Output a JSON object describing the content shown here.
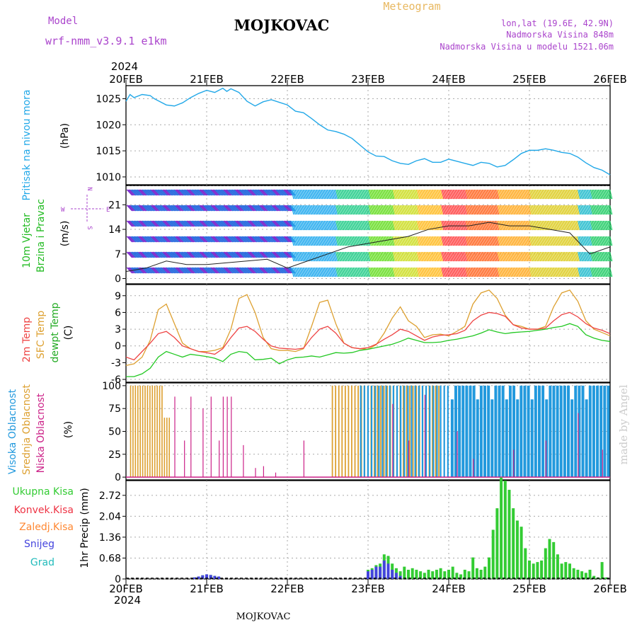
{
  "header": {
    "model_label": "Model",
    "model_name": "wrf-nmm_v3.9.1 e1km",
    "station_title": "MOJKOVAC",
    "product_label": "Meteogram",
    "coords": "lon,lat (19.6E, 42.9N)",
    "elevation": "Nadmorska Visina 848m",
    "model_elevation": "Nadmorska Visina u modelu 1521.06m",
    "year_top": "2024",
    "year_bottom": "2024",
    "footer_station": "MOJKOVAC",
    "credit": "made by Angel"
  },
  "colors": {
    "pressure": "#22a8e8",
    "temp2m": "#ee4444",
    "sfc": "#dda030",
    "dewpt": "#22c822",
    "cloud_high": "#2299dd",
    "cloud_mid": "#dda030",
    "cloud_low": "#cc2288",
    "precip_total": "#33cc33",
    "precip_conv": "#ee3344",
    "precip_frz": "#ff8833",
    "snow": "#4444dd",
    "grad": "#22bbbb",
    "title": "#000000",
    "model_text": "#aa44cc",
    "meteogram_text": "#e8b860"
  },
  "chart_data": [
    {
      "type": "line",
      "panel": "pressure",
      "ylabel_main": "Pritisak na nivou mora",
      "ylabel_unit": "(hPa)",
      "x_ticks": [
        "20FEB",
        "21FEB",
        "22FEB",
        "23FEB",
        "24FEB",
        "25FEB",
        "26FEB"
      ],
      "yticks": [
        1010,
        1015,
        1020,
        1025
      ],
      "ylim": [
        1008.5,
        1027.5
      ],
      "grid": true,
      "series": [
        {
          "x": [
            0,
            0.05,
            0.1,
            0.2,
            0.3,
            0.35,
            0.4,
            0.5,
            0.6,
            0.7,
            0.8,
            0.9,
            1.0,
            1.1,
            1.2,
            1.25,
            1.3,
            1.4,
            1.5,
            1.6,
            1.7,
            1.8,
            1.9,
            2.0,
            2.1,
            2.2,
            2.3,
            2.4,
            2.5,
            2.6,
            2.7,
            2.8,
            2.9,
            3.0,
            3.1,
            3.2,
            3.3,
            3.4,
            3.5,
            3.6,
            3.7,
            3.8,
            3.9,
            4.0,
            4.1,
            4.2,
            4.3,
            4.4,
            4.5,
            4.6,
            4.7,
            4.8,
            4.9,
            5.0,
            5.1,
            5.2,
            5.3,
            5.4,
            5.5,
            5.6,
            5.7,
            5.8,
            5.9,
            6.0
          ],
          "values": [
            1024.5,
            1025.8,
            1025.2,
            1025.8,
            1025.6,
            1025.0,
            1024.6,
            1023.8,
            1023.6,
            1024.2,
            1025.2,
            1026.0,
            1026.6,
            1026.2,
            1027.0,
            1026.4,
            1026.9,
            1026.2,
            1024.5,
            1023.6,
            1024.4,
            1024.8,
            1024.3,
            1023.8,
            1022.6,
            1022.3,
            1021.2,
            1020.0,
            1019.0,
            1018.7,
            1018.2,
            1017.4,
            1016.1,
            1014.8,
            1014.0,
            1013.9,
            1013.1,
            1012.6,
            1012.4,
            1013.1,
            1013.5,
            1012.8,
            1012.8,
            1013.4,
            1013.0,
            1012.6,
            1012.2,
            1012.8,
            1012.6,
            1011.9,
            1012.2,
            1013.3,
            1014.5,
            1015.1,
            1015.1,
            1015.4,
            1015.1,
            1014.7,
            1014.5,
            1013.8,
            1012.7,
            1011.8,
            1011.3,
            1010.4
          ]
        }
      ]
    },
    {
      "type": "line",
      "panel": "wind",
      "ylabel_main": "10m Vjetar",
      "ylabel_sub": "Brzina i Pravac",
      "ylabel_unit": "(m/s)",
      "compass": {
        "n": "N",
        "s": "S",
        "e": "E",
        "w": "W"
      },
      "yticks": [
        0,
        7,
        14,
        21
      ],
      "ylim": [
        -1.5,
        26.5
      ],
      "grid": true,
      "series": [
        {
          "name": "speed",
          "x": [
            0,
            0.25,
            0.5,
            0.75,
            1.0,
            1.25,
            1.5,
            1.75,
            2.0,
            2.25,
            2.5,
            2.75,
            3.0,
            3.25,
            3.5,
            3.75,
            4.0,
            4.25,
            4.5,
            4.75,
            5.0,
            5.25,
            5.5,
            5.75,
            6.0
          ],
          "values": [
            2,
            3,
            5,
            4,
            4,
            4.5,
            5,
            5.5,
            3,
            5,
            7,
            9,
            10,
            11,
            12,
            14,
            15,
            15,
            16,
            15,
            15,
            14,
            13,
            7,
            9
          ]
        }
      ]
    },
    {
      "type": "line",
      "panel": "temperature",
      "ylabel_temp": "2m Temp",
      "ylabel_sfc": "SFC Temp",
      "ylabel_dew": "dewpt Temp",
      "ylabel_unit": "(C)",
      "yticks": [
        -6,
        -3,
        0,
        3,
        6,
        9
      ],
      "ylim": [
        -6.5,
        11
      ],
      "grid": true,
      "series": [
        {
          "name": "2m Temp",
          "x": [
            0,
            0.1,
            0.2,
            0.3,
            0.4,
            0.5,
            0.6,
            0.7,
            0.8,
            0.9,
            1.0,
            1.1,
            1.2,
            1.3,
            1.4,
            1.5,
            1.6,
            1.7,
            1.8,
            1.9,
            2.0,
            2.1,
            2.2,
            2.3,
            2.4,
            2.5,
            2.6,
            2.7,
            2.8,
            2.9,
            3.0,
            3.1,
            3.2,
            3.3,
            3.4,
            3.5,
            3.6,
            3.7,
            3.8,
            3.9,
            4.0,
            4.1,
            4.2,
            4.3,
            4.4,
            4.5,
            4.6,
            4.7,
            4.8,
            4.9,
            5.0,
            5.1,
            5.2,
            5.3,
            5.4,
            5.5,
            5.6,
            5.7,
            5.8,
            5.9,
            6.0
          ],
          "values": [
            -2,
            -2.5,
            -1,
            0.5,
            2.2,
            2.6,
            1.5,
            0,
            -0.5,
            -1,
            -1.2,
            -1.5,
            -0.5,
            1.5,
            3.2,
            3.5,
            2.6,
            1.2,
            0,
            -0.4,
            -0.5,
            -0.6,
            -0.4,
            1.5,
            3,
            3.5,
            2.3,
            0.5,
            -0.3,
            -0.5,
            -0.3,
            0.3,
            1.2,
            2,
            3,
            2.6,
            1.8,
            1.0,
            1.6,
            1.9,
            2.0,
            2.2,
            2.8,
            4.5,
            5.5,
            6,
            5.8,
            5.3,
            3.8,
            3.2,
            3,
            3,
            3.2,
            4.5,
            5.6,
            6,
            5.2,
            4,
            3.2,
            2.8,
            2.2
          ]
        },
        {
          "name": "SFC Temp",
          "x": [
            0,
            0.1,
            0.2,
            0.3,
            0.4,
            0.5,
            0.6,
            0.7,
            0.8,
            0.9,
            1.0,
            1.1,
            1.2,
            1.3,
            1.4,
            1.5,
            1.6,
            1.7,
            1.8,
            1.9,
            2.0,
            2.1,
            2.2,
            2.3,
            2.4,
            2.5,
            2.6,
            2.7,
            2.8,
            2.9,
            3.0,
            3.1,
            3.2,
            3.3,
            3.4,
            3.5,
            3.6,
            3.7,
            3.8,
            3.9,
            4.0,
            4.1,
            4.2,
            4.3,
            4.4,
            4.5,
            4.6,
            4.7,
            4.8,
            4.9,
            5.0,
            5.1,
            5.2,
            5.3,
            5.4,
            5.5,
            5.6,
            5.7,
            5.8,
            5.9,
            6.0
          ],
          "values": [
            -3.5,
            -3.2,
            -2,
            1,
            6.5,
            7.5,
            4,
            0.5,
            -0.5,
            -1,
            -1,
            -0.8,
            -0.3,
            3,
            8.5,
            9.2,
            6,
            1.5,
            -0.5,
            -0.8,
            -0.8,
            -1,
            -0.5,
            3.5,
            7.8,
            8.2,
            4,
            0.5,
            -0.3,
            -0.5,
            -0.6,
            0.2,
            2.3,
            5,
            7,
            4.5,
            3.5,
            1.5,
            2.0,
            2.1,
            1.8,
            2.6,
            3.5,
            7.5,
            9.5,
            10,
            8.5,
            5.5,
            3.8,
            3.5,
            3.0,
            3.0,
            3.5,
            7,
            9.5,
            10,
            8,
            4.5,
            3,
            2.4,
            1.8
          ]
        },
        {
          "name": "dewpt Temp",
          "x": [
            0,
            0.1,
            0.2,
            0.3,
            0.4,
            0.5,
            0.6,
            0.7,
            0.8,
            0.9,
            1.0,
            1.1,
            1.2,
            1.3,
            1.4,
            1.5,
            1.6,
            1.7,
            1.8,
            1.9,
            2.0,
            2.1,
            2.2,
            2.3,
            2.4,
            2.5,
            2.6,
            2.7,
            2.8,
            2.9,
            3.0,
            3.1,
            3.2,
            3.3,
            3.4,
            3.5,
            3.6,
            3.7,
            3.8,
            3.9,
            4.0,
            4.1,
            4.2,
            4.3,
            4.4,
            4.5,
            4.6,
            4.7,
            4.8,
            4.9,
            5.0,
            5.1,
            5.2,
            5.3,
            5.4,
            5.5,
            5.6,
            5.7,
            5.8,
            5.9,
            6.0
          ],
          "values": [
            -5.5,
            -5.5,
            -5,
            -4,
            -2,
            -1,
            -1.5,
            -2,
            -1.5,
            -1.7,
            -1.9,
            -2.2,
            -2.8,
            -1.5,
            -1,
            -1.2,
            -2.5,
            -2.4,
            -2.2,
            -3.2,
            -2.5,
            -2.1,
            -2,
            -1.8,
            -2,
            -1.6,
            -1.2,
            -1.3,
            -1.2,
            -0.8,
            -0.6,
            -0.3,
            0,
            0.3,
            0.8,
            1.4,
            1.0,
            0.6,
            0.6,
            0.7,
            1.0,
            1.2,
            1.5,
            1.8,
            2.3,
            2.9,
            2.5,
            2.2,
            2.4,
            2.5,
            2.6,
            2.8,
            3.0,
            3.3,
            3.5,
            4.0,
            3.5,
            2.0,
            1.4,
            1.0,
            0.8
          ]
        }
      ]
    },
    {
      "type": "bar",
      "panel": "clouds",
      "ylabel_high": "Visoka Oblacnost",
      "ylabel_mid": "Srednja Oblacnost",
      "ylabel_low": "Niska Oblacnost",
      "ylabel_unit": "(%)",
      "yticks": [
        0,
        25,
        50,
        75,
        100
      ],
      "ylim": [
        -3,
        103
      ],
      "grid": true
    },
    {
      "type": "bar",
      "panel": "precip",
      "ylabel_unit": "1hr Precip (mm)",
      "legend": [
        "Ukupna Kisa",
        "Konvek.Kisa",
        "Zaledj.Kisa",
        "Snijeg",
        "Grad"
      ],
      "yticks": [
        0,
        0.68,
        1.36,
        2.04,
        2.72
      ],
      "ytick_labels": [
        "0",
        "0.68",
        "1.36",
        "2.04",
        "2.72"
      ],
      "ylim": [
        0,
        3.2
      ],
      "grid": true,
      "series": [
        {
          "name": "Ukupna Kisa",
          "x": [
            0.85,
            0.9,
            0.95,
            1.0,
            1.05,
            1.1,
            1.15,
            3.0,
            3.05,
            3.1,
            3.15,
            3.2,
            3.25,
            3.3,
            3.35,
            3.4,
            3.45,
            3.5,
            3.55,
            3.6,
            3.65,
            3.7,
            3.75,
            3.8,
            3.85,
            3.9,
            3.95,
            4.0,
            4.05,
            4.1,
            4.15,
            4.2,
            4.25,
            4.3,
            4.35,
            4.4,
            4.45,
            4.5,
            4.55,
            4.6,
            4.65,
            4.7,
            4.75,
            4.8,
            4.85,
            4.9,
            4.95,
            5.0,
            5.05,
            5.1,
            5.15,
            5.2,
            5.25,
            5.3,
            5.35,
            5.4,
            5.45,
            5.5,
            5.55,
            5.6,
            5.65,
            5.7,
            5.75,
            5.8,
            5.85,
            5.9,
            5.95
          ],
          "values": [
            0.05,
            0.08,
            0.12,
            0.15,
            0.13,
            0.1,
            0.08,
            0.3,
            0.35,
            0.45,
            0.5,
            0.8,
            0.75,
            0.5,
            0.35,
            0.25,
            0.4,
            0.3,
            0.35,
            0.3,
            0.25,
            0.2,
            0.3,
            0.25,
            0.3,
            0.35,
            0.25,
            0.3,
            0.4,
            0.2,
            0.15,
            0.3,
            0.25,
            0.7,
            0.35,
            0.3,
            0.4,
            0.7,
            1.6,
            2.3,
            3.3,
            3.2,
            2.9,
            2.3,
            1.9,
            1.7,
            1.0,
            0.6,
            0.5,
            0.55,
            0.6,
            1.0,
            1.3,
            1.2,
            0.8,
            0.5,
            0.55,
            0.5,
            0.35,
            0.3,
            0.25,
            0.2,
            0.3,
            0.1,
            0.05,
            0.55,
            0.05
          ]
        },
        {
          "name": "Snijeg",
          "x": [
            0.85,
            0.9,
            0.95,
            1.0,
            1.05,
            1.1,
            1.15,
            3.0,
            3.05,
            3.1,
            3.15,
            3.2,
            3.25,
            3.3,
            3.35,
            3.4
          ],
          "values": [
            0.05,
            0.08,
            0.12,
            0.15,
            0.13,
            0.1,
            0.08,
            0.25,
            0.3,
            0.4,
            0.4,
            0.6,
            0.5,
            0.3,
            0.2,
            0.1
          ]
        }
      ]
    }
  ]
}
